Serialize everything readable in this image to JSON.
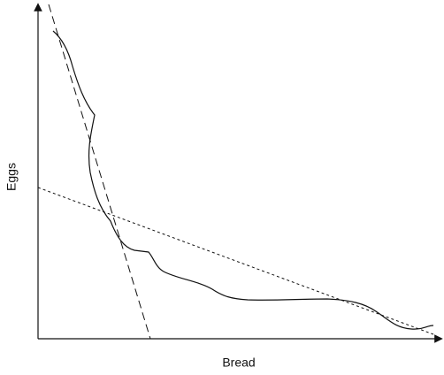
{
  "axes": {
    "y_label": "Eggs",
    "x_label": "Bread"
  }
}
